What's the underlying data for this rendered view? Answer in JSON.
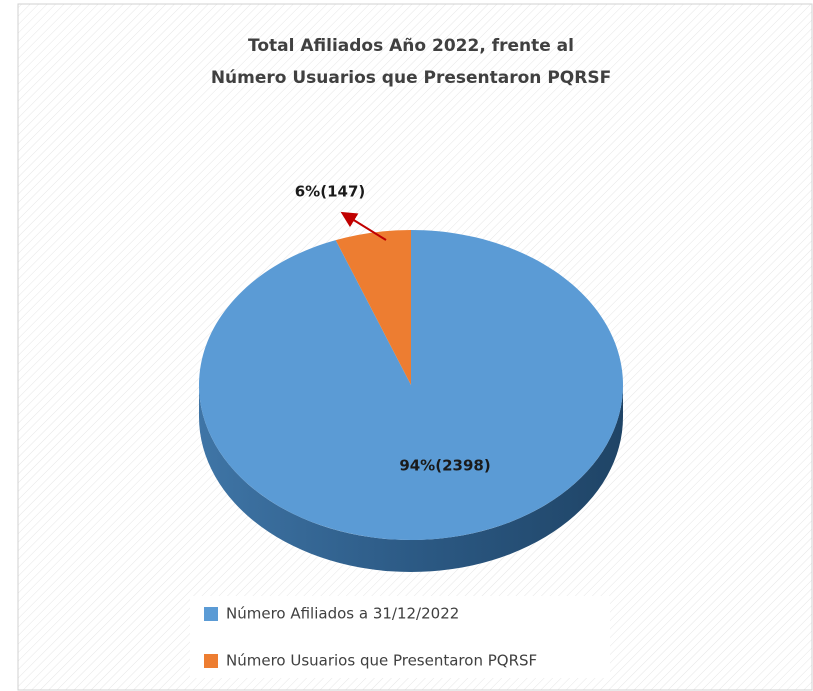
{
  "chart_data": {
    "type": "pie",
    "title": [
      "Total Afiliados  Año 2022, frente al",
      "Número Usuarios  que Presentaron PQRSF"
    ],
    "categories": [
      "Número Afiliados a 31/12/2022",
      "Número Usuarios que Presentaron PQRSF"
    ],
    "values": [
      2398,
      147
    ],
    "value_labels": [
      "94%(2398)",
      "6%(147)"
    ],
    "colors": [
      "#5b9bd5",
      "#ed7d31"
    ],
    "legend": "bottom"
  }
}
